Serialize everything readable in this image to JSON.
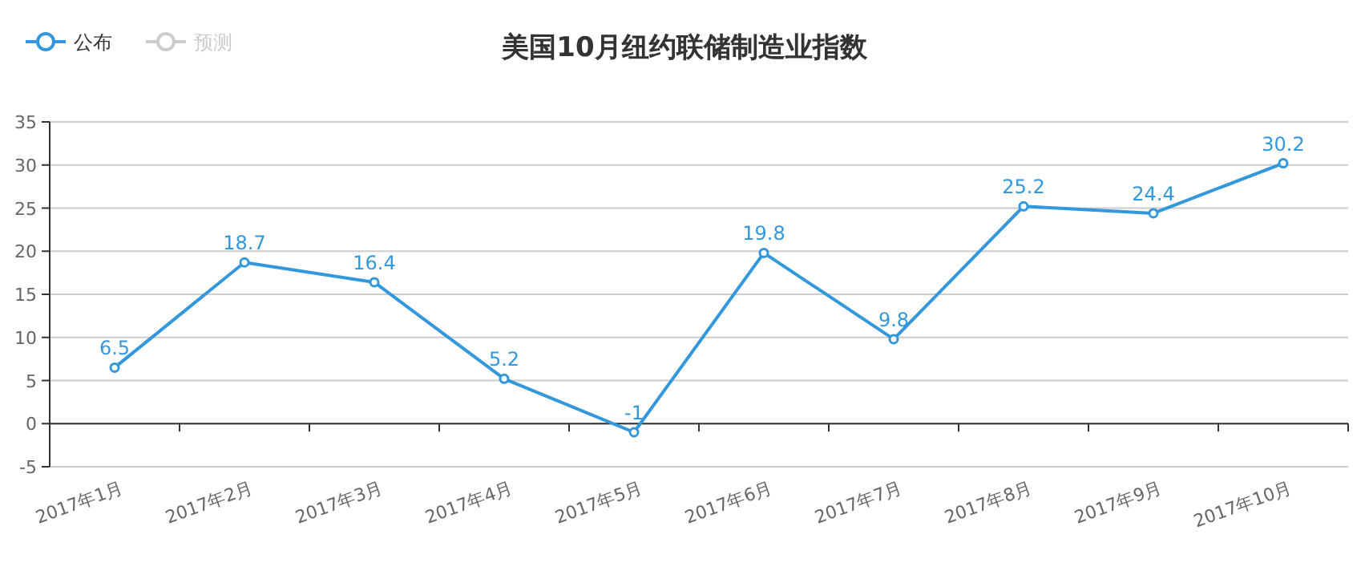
{
  "chart_data": {
    "type": "line",
    "title": "美国10月纽约联储制造业指数",
    "categories": [
      "2017年1月",
      "2017年2月",
      "2017年3月",
      "2017年4月",
      "2017年5月",
      "2017年6月",
      "2017年7月",
      "2017年8月",
      "2017年9月",
      "2017年10月"
    ],
    "series": [
      {
        "name": "公布",
        "color": "#3398db",
        "values": [
          6.5,
          18.7,
          16.4,
          5.2,
          -1,
          19.8,
          9.8,
          25.2,
          24.4,
          30.2
        ]
      },
      {
        "name": "预测",
        "color": "#cccccc",
        "values": [
          null,
          null,
          null,
          null,
          null,
          null,
          null,
          null,
          null,
          null
        ]
      }
    ],
    "ylim": [
      -5,
      35
    ],
    "yticks": [
      -5,
      0,
      5,
      10,
      15,
      20,
      25,
      30,
      35
    ],
    "grid": "y",
    "legend": "top left",
    "marker": "circle",
    "data_labels": true
  }
}
